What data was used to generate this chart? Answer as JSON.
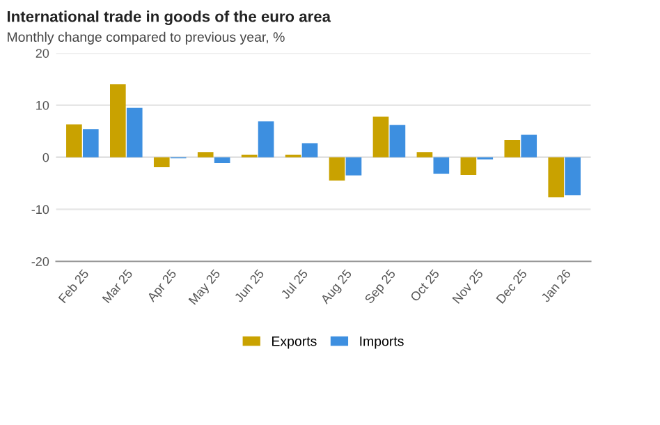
{
  "chart_data": {
    "type": "bar",
    "title": "International trade in goods of the euro area",
    "subtitle": "Monthly change compared to previous year, %",
    "categories": [
      "Feb 25",
      "Mar 25",
      "Apr 25",
      "May 25",
      "Jun 25",
      "Jul 25",
      "Aug 25",
      "Sep 25",
      "Oct 25",
      "Nov 25",
      "Dec 25",
      "Jan 26"
    ],
    "series": [
      {
        "name": "Exports",
        "color": "#c9a200",
        "values": [
          6.3,
          14.0,
          -1.9,
          1.0,
          0.5,
          0.5,
          -4.5,
          7.8,
          1.0,
          -3.4,
          3.3,
          -7.7
        ]
      },
      {
        "name": "Imports",
        "color": "#3d8fe0",
        "values": [
          5.4,
          9.5,
          -0.2,
          -1.1,
          6.9,
          2.7,
          -3.5,
          6.2,
          -3.2,
          -0.4,
          4.3,
          -7.3
        ]
      }
    ],
    "ylim": [
      -20,
      20
    ],
    "yticks": [
      -20,
      -10,
      0,
      10,
      20
    ],
    "grid": "y",
    "legend": "bottom"
  }
}
